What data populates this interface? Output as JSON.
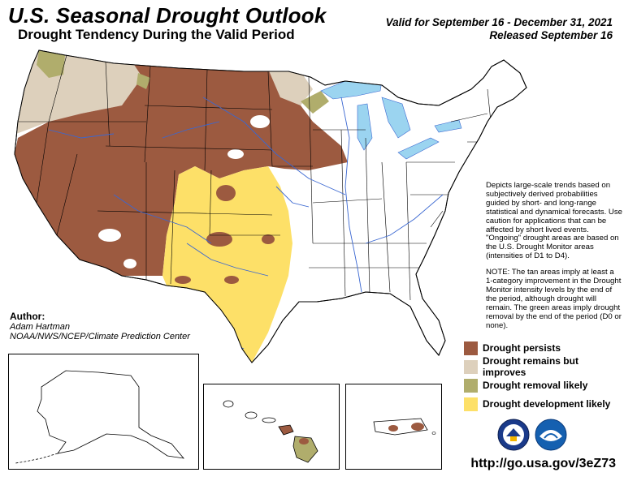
{
  "header": {
    "title": "U.S. Seasonal Drought Outlook",
    "subtitle": "Drought Tendency During the Valid Period",
    "valid_line": "Valid for September 16 - December 31, 2021",
    "released_line": "Released September 16"
  },
  "author": {
    "label": "Author:",
    "name": "Adam Hartman",
    "org": "NOAA/NWS/NCEP/Climate Prediction Center"
  },
  "notes": {
    "description": "Depicts large-scale trends based on subjectively derived probabilities guided by short- and long-range statistical and dynamical forecasts. Use caution for applications that can be affected by short lived events. \"Ongoing\" drought areas are based on the U.S. Drought Monitor areas (intensities of D1 to D4).",
    "note": "NOTE: The tan areas imply at least a 1-category improvement in the Drought Monitor intensity levels by the end of the period, although drought will remain. The green areas imply drought removal by the end of the period (D0 or none)."
  },
  "legend": [
    {
      "label": "Drought persists",
      "color": "#9c5a40"
    },
    {
      "label": "Drought remains but improves",
      "color": "#ddd0bc"
    },
    {
      "label": "Drought removal likely",
      "color": "#b0ad6c"
    },
    {
      "label": "Drought development likely",
      "color": "#fde068"
    }
  ],
  "colors": {
    "persists": "#9c5a40",
    "improves": "#ddd0bc",
    "removal": "#b0ad6c",
    "development": "#fde068",
    "water": "#9bd4f0",
    "rivers": "#3a67d1"
  },
  "logos": [
    "noaa-logo",
    "nws-logo"
  ],
  "footer": {
    "url": "http://go.usa.gov/3eZ73"
  }
}
